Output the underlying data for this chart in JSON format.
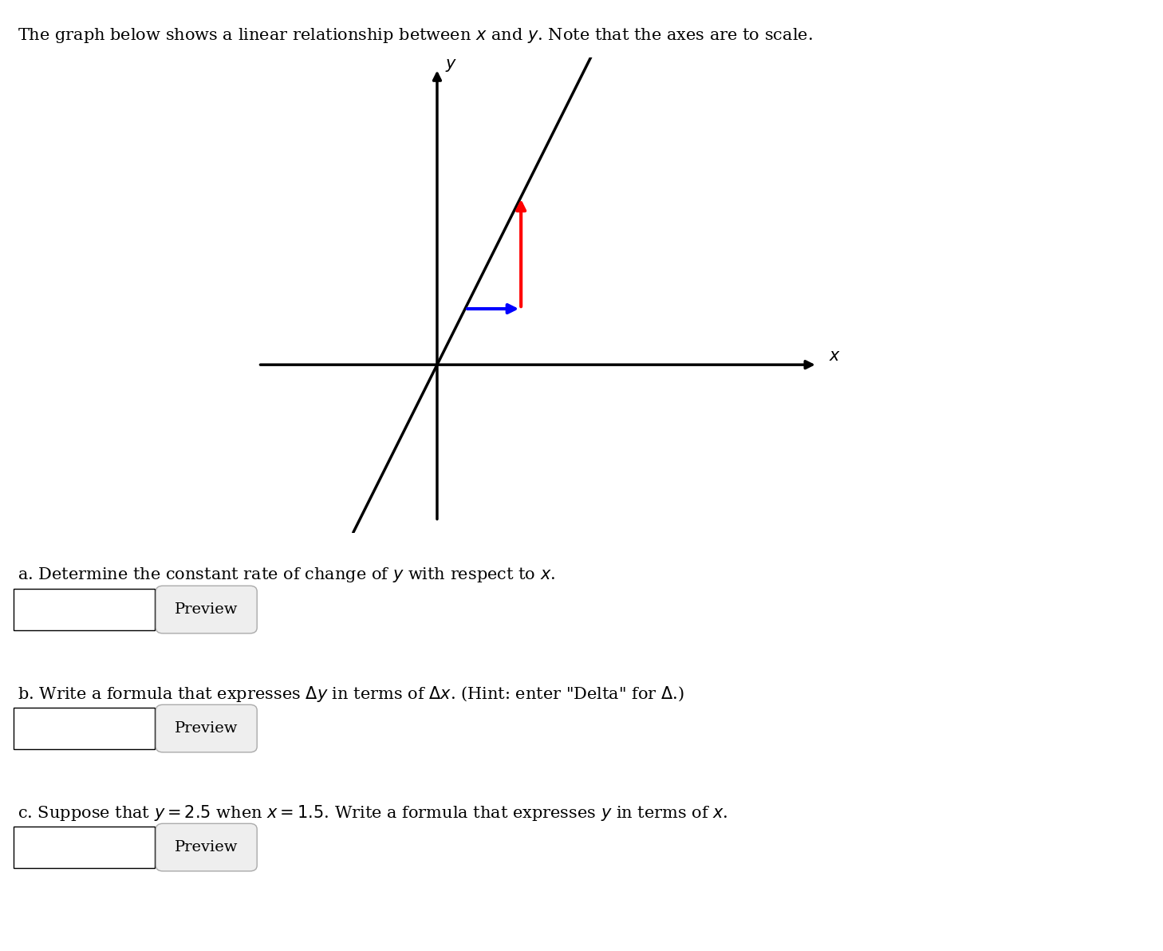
{
  "title_text": "The graph below shows a linear relationship between $x$ and $y$. Note that the axes are to scale.",
  "title_fontsize": 15,
  "background_color": "#ffffff",
  "slope": 2.0,
  "line_color": "#000000",
  "line_width": 2.5,
  "red_arrow_color": "#ff0000",
  "blue_arrow_color": "#0000ff",
  "question_a": "a. Determine the constant rate of change of $y$ with respect to $x$.",
  "question_b": "b. Write a formula that expresses $\\Delta y$ in terms of $\\Delta x$. (Hint: enter \"Delta\" for $\\Delta$.)",
  "question_c": "c. Suppose that $y = 2.5$ when $x = 1.5$. Write a formula that expresses $y$ in terms of $x$.",
  "preview_button_text": "Preview",
  "text_fontsize": 15
}
